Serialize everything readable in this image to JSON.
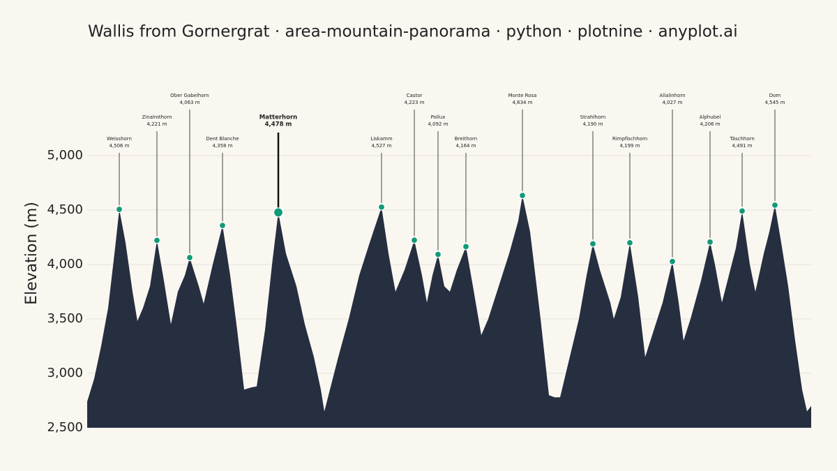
{
  "chart_data": {
    "type": "area",
    "title": "Wallis from Gornergrat · area-mountain-panorama · python · plotnine · anyplot.ai",
    "ylabel": "Elevation (m)",
    "ylim": [
      2500,
      5000
    ],
    "yticks": [
      {
        "value": 2500,
        "label": "2,500"
      },
      {
        "value": 3000,
        "label": "3,000"
      },
      {
        "value": 3500,
        "label": "3,500"
      },
      {
        "value": 4000,
        "label": "4,000"
      },
      {
        "value": 4500,
        "label": "4,500"
      },
      {
        "value": 5000,
        "label": "5,000"
      }
    ],
    "grid": true,
    "xlim": [
      0,
      1038
    ],
    "x": [
      0,
      10,
      20,
      30,
      40,
      46,
      55,
      65,
      72,
      80,
      90,
      100,
      110,
      120,
      130,
      140,
      147,
      160,
      167,
      180,
      194,
      205,
      215,
      225,
      235,
      243,
      255,
      265,
      274,
      285,
      300,
      312,
      325,
      335,
      340,
      350,
      360,
      375,
      390,
      405,
      422,
      432,
      442,
      455,
      469,
      480,
      487,
      495,
      503,
      512,
      520,
      530,
      543,
      553,
      565,
      575,
      590,
      605,
      618,
      624,
      635,
      650,
      662,
      670,
      678,
      690,
      705,
      716,
      725,
      735,
      750,
      755,
      765,
      778,
      790,
      800,
      810,
      825,
      839,
      848,
      855,
      865,
      880,
      893,
      900,
      910,
      920,
      930,
      939,
      950,
      958,
      970,
      978,
      986,
      995,
      1005,
      1015,
      1025,
      1032,
      1038
    ],
    "series": [
      {
        "color": "#262f40",
        "values": [
          2740,
          2950,
          3250,
          3600,
          4150,
          4506,
          4200,
          3750,
          3480,
          3600,
          3800,
          4221,
          3850,
          3450,
          3750,
          3900,
          4063,
          3800,
          3640,
          4000,
          4358,
          3900,
          3400,
          2850,
          2870,
          2880,
          3400,
          4000,
          4478,
          4100,
          3800,
          3450,
          3150,
          2850,
          2650,
          2900,
          3150,
          3500,
          3900,
          4200,
          4527,
          4100,
          3750,
          3950,
          4223,
          3900,
          3650,
          3900,
          4092,
          3800,
          3750,
          3950,
          4164,
          3800,
          3350,
          3500,
          3800,
          4100,
          4400,
          4634,
          4300,
          3500,
          2800,
          2780,
          2780,
          3100,
          3500,
          3900,
          4190,
          3950,
          3650,
          3500,
          3700,
          4199,
          3700,
          3150,
          3350,
          3650,
          4027,
          3650,
          3300,
          3500,
          3850,
          4206,
          4000,
          3650,
          3900,
          4150,
          4491,
          4000,
          3750,
          4100,
          4300,
          4545,
          4200,
          3800,
          3300,
          2850,
          2650,
          2700
        ]
      }
    ],
    "marker_color": "#129a78",
    "peaks": [
      {
        "name": "Weisshorn",
        "x": 46,
        "elevation": 4506,
        "elevation_label": "4,506 m"
      },
      {
        "name": "Zinalrothorn",
        "x": 100,
        "elevation": 4221,
        "elevation_label": "4,221 m"
      },
      {
        "name": "Ober Gabelhorn",
        "x": 147,
        "elevation": 4063,
        "elevation_label": "4,063 m"
      },
      {
        "name": "Dent Blanche",
        "x": 194,
        "elevation": 4358,
        "elevation_label": "4,358 m"
      },
      {
        "name": "Matterhorn",
        "x": 274,
        "elevation": 4478,
        "elevation_label": "4,478 m",
        "highlight": true
      },
      {
        "name": "Liskamm",
        "x": 422,
        "elevation": 4527,
        "elevation_label": "4,527 m"
      },
      {
        "name": "Castor",
        "x": 469,
        "elevation": 4223,
        "elevation_label": "4,223 m"
      },
      {
        "name": "Pollux",
        "x": 503,
        "elevation": 4092,
        "elevation_label": "4,092 m"
      },
      {
        "name": "Breithorn",
        "x": 543,
        "elevation": 4164,
        "elevation_label": "4,164 m"
      },
      {
        "name": "Monte Rosa",
        "x": 624,
        "elevation": 4634,
        "elevation_label": "4,634 m"
      },
      {
        "name": "Strahlhorn",
        "x": 725,
        "elevation": 4190,
        "elevation_label": "4,190 m"
      },
      {
        "name": "Rimpfischhorn",
        "x": 778,
        "elevation": 4199,
        "elevation_label": "4,199 m"
      },
      {
        "name": "Allalinhorn",
        "x": 839,
        "elevation": 4027,
        "elevation_label": "4,027 m"
      },
      {
        "name": "Alphubel",
        "x": 893,
        "elevation": 4206,
        "elevation_label": "4,206 m"
      },
      {
        "name": "Täschhorn",
        "x": 939,
        "elevation": 4491,
        "elevation_label": "4,491 m"
      },
      {
        "name": "Dom",
        "x": 986,
        "elevation": 4545,
        "elevation_label": "4,545 m"
      }
    ]
  }
}
